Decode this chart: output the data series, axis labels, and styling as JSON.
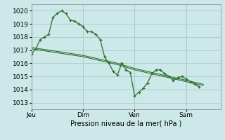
{
  "background_color": "#cce8e8",
  "line_color": "#2d6e2d",
  "grid_color": "#aacfcf",
  "xlabel": "Pression niveau de la mer( hPa )",
  "ylim": [
    1012.5,
    1020.5
  ],
  "yticks": [
    1013,
    1014,
    1015,
    1016,
    1017,
    1018,
    1019,
    1020
  ],
  "day_labels": [
    "Jeu",
    "Dim",
    "Ven",
    "Sam"
  ],
  "day_positions": [
    0,
    72,
    144,
    216
  ],
  "total_hours": 264,
  "line1": {
    "x": [
      0,
      6,
      12,
      18,
      24,
      30,
      36,
      42,
      48,
      54,
      60,
      66,
      72,
      78,
      84,
      90,
      96,
      102,
      108,
      114,
      120,
      126,
      132,
      138,
      144,
      150,
      156,
      162,
      168,
      174,
      180,
      186,
      192,
      198,
      204,
      210,
      216,
      222,
      228,
      234
    ],
    "y": [
      1016.7,
      1017.1,
      1017.8,
      1018.0,
      1018.2,
      1019.5,
      1019.8,
      1020.0,
      1019.8,
      1019.3,
      1019.2,
      1019.0,
      1018.8,
      1018.4,
      1018.4,
      1018.2,
      1017.8,
      1016.5,
      1016.0,
      1015.4,
      1015.1,
      1016.0,
      1015.5,
      1015.3,
      1013.5,
      1013.8,
      1014.1,
      1014.5,
      1015.2,
      1015.5,
      1015.5,
      1015.2,
      1015.0,
      1014.7,
      1014.9,
      1015.0,
      1014.8,
      1014.6,
      1014.4,
      1014.2
    ]
  },
  "line2": {
    "x": [
      0,
      24,
      48,
      72,
      96,
      120,
      144,
      168,
      192,
      216,
      240
    ],
    "y": [
      1017.2,
      1017.0,
      1016.8,
      1016.6,
      1016.3,
      1016.0,
      1015.6,
      1015.3,
      1015.0,
      1014.7,
      1014.4
    ]
  },
  "line3": {
    "x": [
      0,
      24,
      48,
      72,
      96,
      120,
      144,
      168,
      192,
      216,
      240
    ],
    "y": [
      1017.1,
      1016.9,
      1016.7,
      1016.5,
      1016.2,
      1015.9,
      1015.5,
      1015.2,
      1014.9,
      1014.6,
      1014.3
    ]
  }
}
